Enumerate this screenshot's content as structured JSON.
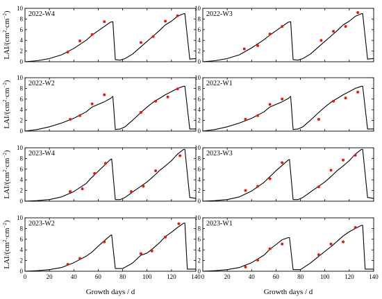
{
  "chart_data": {
    "type": "line",
    "xlabel": "Growth days / d",
    "ylabel_parts": [
      "LAI/(cm",
      "2",
      "·cm",
      "−2",
      ")"
    ],
    "xlim": [
      0,
      140
    ],
    "ylim": [
      0,
      10
    ],
    "x_ticks": [
      0,
      20,
      40,
      60,
      80,
      100,
      120,
      140
    ],
    "y_ticks": [
      0,
      2,
      4,
      6,
      8,
      10
    ],
    "legend": "none",
    "series_styles": {
      "simulated": {
        "color": "#000000",
        "style": "solid line"
      },
      "observed": {
        "color": "#e8190d",
        "style": "dots"
      }
    },
    "panels": [
      {
        "label": "2022-W4",
        "simulated": [
          [
            0,
            0
          ],
          [
            10,
            0.2
          ],
          [
            20,
            0.6
          ],
          [
            30,
            1.3
          ],
          [
            40,
            2.5
          ],
          [
            50,
            4.0
          ],
          [
            55,
            5.0
          ],
          [
            60,
            5.8
          ],
          [
            65,
            6.6
          ],
          [
            70,
            7.4
          ],
          [
            72,
            7.5
          ],
          [
            74,
            0.4
          ],
          [
            78,
            0.3
          ],
          [
            82,
            0.6
          ],
          [
            88,
            1.4
          ],
          [
            95,
            2.8
          ],
          [
            100,
            3.8
          ],
          [
            105,
            4.8
          ],
          [
            110,
            5.8
          ],
          [
            115,
            6.9
          ],
          [
            120,
            7.6
          ],
          [
            125,
            8.5
          ],
          [
            130,
            9.0
          ],
          [
            131,
            9.0
          ],
          [
            135,
            0.5
          ],
          [
            140,
            0.6
          ]
        ],
        "observed": [
          [
            35,
            1.8
          ],
          [
            45,
            3.9
          ],
          [
            55,
            5.1
          ],
          [
            65,
            7.5
          ],
          [
            95,
            3.6
          ],
          [
            105,
            4.7
          ],
          [
            115,
            7.6
          ],
          [
            125,
            8.6
          ]
        ]
      },
      {
        "label": "2022-W3",
        "simulated": [
          [
            0,
            0
          ],
          [
            10,
            0.2
          ],
          [
            20,
            0.6
          ],
          [
            30,
            1.3
          ],
          [
            40,
            2.6
          ],
          [
            50,
            4.1
          ],
          [
            55,
            5.0
          ],
          [
            60,
            5.8
          ],
          [
            65,
            6.6
          ],
          [
            70,
            7.4
          ],
          [
            72,
            7.5
          ],
          [
            74,
            0.4
          ],
          [
            78,
            0.3
          ],
          [
            82,
            0.6
          ],
          [
            88,
            1.4
          ],
          [
            95,
            2.8
          ],
          [
            100,
            3.8
          ],
          [
            105,
            4.8
          ],
          [
            110,
            5.8
          ],
          [
            115,
            6.9
          ],
          [
            120,
            7.6
          ],
          [
            125,
            8.5
          ],
          [
            130,
            9.0
          ],
          [
            131,
            9.0
          ],
          [
            135,
            0.5
          ],
          [
            140,
            0.6
          ]
        ],
        "observed": [
          [
            34,
            2.4
          ],
          [
            45,
            3.0
          ],
          [
            55,
            5.2
          ],
          [
            65,
            6.6
          ],
          [
            97,
            4.0
          ],
          [
            107,
            5.7
          ],
          [
            117,
            6.6
          ],
          [
            127,
            9.2
          ]
        ]
      },
      {
        "label": "2022-W2",
        "simulated": [
          [
            0,
            0
          ],
          [
            10,
            0.3
          ],
          [
            20,
            0.8
          ],
          [
            30,
            1.5
          ],
          [
            40,
            2.4
          ],
          [
            50,
            3.6
          ],
          [
            55,
            4.5
          ],
          [
            60,
            5.0
          ],
          [
            65,
            5.5
          ],
          [
            70,
            6.1
          ],
          [
            72,
            6.5
          ],
          [
            74,
            0.3
          ],
          [
            78,
            0.4
          ],
          [
            82,
            0.8
          ],
          [
            88,
            2.0
          ],
          [
            95,
            3.5
          ],
          [
            100,
            4.5
          ],
          [
            105,
            5.4
          ],
          [
            110,
            6.1
          ],
          [
            115,
            6.8
          ],
          [
            120,
            7.4
          ],
          [
            125,
            8.0
          ],
          [
            130,
            8.4
          ],
          [
            131,
            8.4
          ],
          [
            135,
            0.4
          ],
          [
            140,
            0.4
          ]
        ],
        "observed": [
          [
            37,
            2.2
          ],
          [
            45,
            2.9
          ],
          [
            55,
            5.1
          ],
          [
            65,
            6.8
          ],
          [
            95,
            3.5
          ],
          [
            107,
            5.6
          ],
          [
            117,
            6.4
          ],
          [
            125,
            7.9
          ]
        ]
      },
      {
        "label": "2022-W1",
        "simulated": [
          [
            0,
            0
          ],
          [
            10,
            0.3
          ],
          [
            20,
            0.8
          ],
          [
            30,
            1.5
          ],
          [
            40,
            2.4
          ],
          [
            50,
            3.6
          ],
          [
            55,
            4.5
          ],
          [
            60,
            5.0
          ],
          [
            65,
            5.5
          ],
          [
            70,
            6.1
          ],
          [
            72,
            6.5
          ],
          [
            74,
            0.3
          ],
          [
            78,
            0.4
          ],
          [
            82,
            0.8
          ],
          [
            88,
            2.0
          ],
          [
            95,
            3.5
          ],
          [
            100,
            4.5
          ],
          [
            105,
            5.4
          ],
          [
            110,
            6.1
          ],
          [
            115,
            6.8
          ],
          [
            120,
            7.4
          ],
          [
            125,
            8.0
          ],
          [
            130,
            8.4
          ],
          [
            131,
            8.4
          ],
          [
            135,
            0.4
          ],
          [
            140,
            0.4
          ]
        ],
        "observed": [
          [
            35,
            2.2
          ],
          [
            45,
            2.9
          ],
          [
            55,
            5.0
          ],
          [
            65,
            6.0
          ],
          [
            95,
            2.2
          ],
          [
            107,
            5.6
          ],
          [
            117,
            6.2
          ],
          [
            127,
            7.3
          ]
        ]
      },
      {
        "label": "2023-W4",
        "simulated": [
          [
            0,
            0
          ],
          [
            10,
            0.1
          ],
          [
            20,
            0.3
          ],
          [
            30,
            0.8
          ],
          [
            40,
            1.8
          ],
          [
            50,
            3.3
          ],
          [
            55,
            4.5
          ],
          [
            60,
            5.6
          ],
          [
            65,
            6.7
          ],
          [
            70,
            7.8
          ],
          [
            71,
            7.9
          ],
          [
            74,
            0.3
          ],
          [
            78,
            0.3
          ],
          [
            82,
            0.7
          ],
          [
            90,
            2.0
          ],
          [
            100,
            3.6
          ],
          [
            105,
            4.6
          ],
          [
            110,
            5.7
          ],
          [
            115,
            6.6
          ],
          [
            120,
            7.6
          ],
          [
            125,
            8.8
          ],
          [
            130,
            9.7
          ],
          [
            131,
            9.7
          ],
          [
            135,
            0.7
          ],
          [
            140,
            0.5
          ]
        ],
        "observed": [
          [
            37,
            1.8
          ],
          [
            47,
            2.3
          ],
          [
            57,
            5.2
          ],
          [
            66,
            7.1
          ],
          [
            87,
            1.8
          ],
          [
            97,
            2.8
          ],
          [
            107,
            5.7
          ],
          [
            127,
            8.5
          ]
        ]
      },
      {
        "label": "2023-W3",
        "simulated": [
          [
            0,
            0
          ],
          [
            10,
            0.1
          ],
          [
            20,
            0.3
          ],
          [
            30,
            0.8
          ],
          [
            40,
            1.9
          ],
          [
            50,
            3.5
          ],
          [
            55,
            4.6
          ],
          [
            60,
            5.7
          ],
          [
            65,
            6.7
          ],
          [
            70,
            7.7
          ],
          [
            71,
            7.8
          ],
          [
            74,
            0.3
          ],
          [
            78,
            0.3
          ],
          [
            82,
            0.7
          ],
          [
            90,
            2.0
          ],
          [
            100,
            3.6
          ],
          [
            105,
            4.6
          ],
          [
            110,
            5.7
          ],
          [
            115,
            6.6
          ],
          [
            120,
            7.6
          ],
          [
            125,
            8.8
          ],
          [
            130,
            9.7
          ],
          [
            131,
            9.7
          ],
          [
            135,
            0.7
          ],
          [
            140,
            0.5
          ]
        ],
        "observed": [
          [
            35,
            2.0
          ],
          [
            45,
            2.8
          ],
          [
            55,
            4.2
          ],
          [
            65,
            7.2
          ],
          [
            95,
            2.7
          ],
          [
            105,
            5.8
          ],
          [
            115,
            7.7
          ],
          [
            125,
            8.6
          ]
        ]
      },
      {
        "label": "2023-W2",
        "simulated": [
          [
            0,
            0
          ],
          [
            10,
            0.1
          ],
          [
            20,
            0.3
          ],
          [
            30,
            0.7
          ],
          [
            40,
            1.6
          ],
          [
            50,
            2.8
          ],
          [
            55,
            3.6
          ],
          [
            60,
            4.7
          ],
          [
            65,
            5.7
          ],
          [
            70,
            6.7
          ],
          [
            71,
            6.8
          ],
          [
            74,
            0.5
          ],
          [
            80,
            0.5
          ],
          [
            88,
            1.5
          ],
          [
            95,
            3.0
          ],
          [
            100,
            3.4
          ],
          [
            105,
            4.3
          ],
          [
            110,
            5.3
          ],
          [
            115,
            6.5
          ],
          [
            120,
            7.3
          ],
          [
            125,
            8.2
          ],
          [
            130,
            9.0
          ],
          [
            131,
            9.0
          ],
          [
            133,
            0.4
          ],
          [
            140,
            0.4
          ]
        ],
        "observed": [
          [
            35,
            1.3
          ],
          [
            45,
            2.4
          ],
          [
            65,
            5.5
          ],
          [
            95,
            3.3
          ],
          [
            104,
            3.8
          ],
          [
            115,
            6.4
          ],
          [
            126,
            8.9
          ]
        ]
      },
      {
        "label": "2023-W1",
        "simulated": [
          [
            0,
            0
          ],
          [
            10,
            0.1
          ],
          [
            20,
            0.3
          ],
          [
            30,
            0.7
          ],
          [
            40,
            1.6
          ],
          [
            50,
            3.0
          ],
          [
            55,
            4.1
          ],
          [
            60,
            5.0
          ],
          [
            65,
            5.9
          ],
          [
            70,
            6.3
          ],
          [
            71,
            6.3
          ],
          [
            74,
            0.3
          ],
          [
            80,
            0.3
          ],
          [
            88,
            1.5
          ],
          [
            95,
            2.8
          ],
          [
            100,
            3.7
          ],
          [
            105,
            4.6
          ],
          [
            110,
            5.6
          ],
          [
            115,
            6.6
          ],
          [
            120,
            7.4
          ],
          [
            125,
            8.0
          ],
          [
            130,
            8.6
          ],
          [
            131,
            8.6
          ],
          [
            133,
            0.4
          ],
          [
            140,
            0.4
          ]
        ],
        "observed": [
          [
            35,
            0.8
          ],
          [
            45,
            2.1
          ],
          [
            55,
            4.2
          ],
          [
            65,
            5.1
          ],
          [
            95,
            3.1
          ],
          [
            105,
            5.1
          ],
          [
            115,
            5.5
          ],
          [
            125,
            8.2
          ]
        ]
      }
    ]
  }
}
